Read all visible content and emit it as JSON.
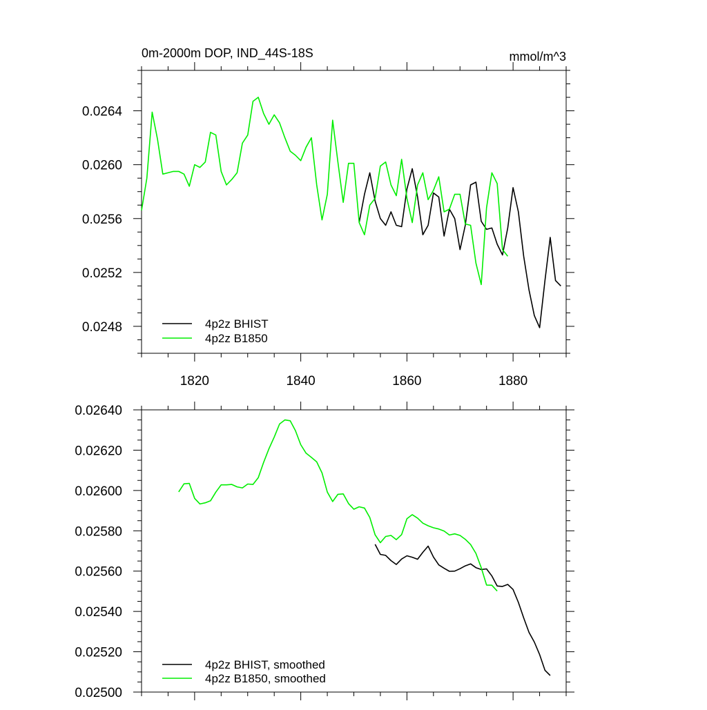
{
  "colors": {
    "bhist": "#000000",
    "b1850": "#00ee00",
    "axis": "#000000"
  },
  "chart_data": [
    {
      "type": "line",
      "title": "0m-2000m DOP, IND_44S-18S",
      "units": "mmol/m^3",
      "xlabel": "",
      "ylabel": "",
      "xlim": [
        1810,
        1890
      ],
      "ylim": [
        0.0246,
        0.0267
      ],
      "xticks": [
        1820,
        1840,
        1860,
        1880
      ],
      "xtick_labels": [
        "1820",
        "1840",
        "1860",
        "1880"
      ],
      "yticks": [
        0.0248,
        0.0252,
        0.0256,
        0.026,
        0.0264
      ],
      "ytick_labels": [
        "0.0248",
        "0.0252",
        "0.0256",
        "0.0260",
        "0.0264"
      ],
      "grid": false,
      "legend": "bottom-left",
      "series": [
        {
          "name": "4p2z BHIST",
          "x": [
            1851,
            1852,
            1853,
            1854,
            1855,
            1856,
            1857,
            1858,
            1859,
            1860,
            1861,
            1862,
            1863,
            1864,
            1865,
            1866,
            1867,
            1868,
            1869,
            1870,
            1871,
            1872,
            1873,
            1874,
            1875,
            1876,
            1877,
            1878,
            1879,
            1880,
            1881,
            1882,
            1883,
            1884,
            1885,
            1886,
            1887,
            1888,
            1889
          ],
          "y": [
            0.02557,
            0.02578,
            0.02594,
            0.02573,
            0.0256,
            0.02555,
            0.02565,
            0.02555,
            0.02554,
            0.02582,
            0.02597,
            0.02576,
            0.02548,
            0.02555,
            0.02579,
            0.02576,
            0.02547,
            0.02567,
            0.0256,
            0.02537,
            0.02555,
            0.02585,
            0.02587,
            0.02558,
            0.02552,
            0.02553,
            0.02541,
            0.02533,
            0.02553,
            0.02583,
            0.02565,
            0.02532,
            0.02507,
            0.02488,
            0.02479,
            0.02514,
            0.02546,
            0.02514,
            0.0251
          ]
        },
        {
          "name": "4p2z B1850",
          "x": [
            1810,
            1811,
            1812,
            1813,
            1814,
            1815,
            1816,
            1817,
            1818,
            1819,
            1820,
            1821,
            1822,
            1823,
            1824,
            1825,
            1826,
            1827,
            1828,
            1829,
            1830,
            1831,
            1832,
            1833,
            1834,
            1835,
            1836,
            1837,
            1838,
            1839,
            1840,
            1841,
            1842,
            1843,
            1844,
            1845,
            1846,
            1847,
            1848,
            1849,
            1850,
            1851,
            1852,
            1853,
            1854,
            1855,
            1856,
            1857,
            1858,
            1859,
            1860,
            1861,
            1862,
            1863,
            1864,
            1865,
            1866,
            1867,
            1868,
            1869,
            1870,
            1871,
            1872,
            1873,
            1874,
            1875,
            1876,
            1877,
            1878,
            1879
          ],
          "y": [
            0.02566,
            0.0259,
            0.02639,
            0.02619,
            0.02593,
            0.02594,
            0.02595,
            0.02595,
            0.02593,
            0.02584,
            0.026,
            0.02598,
            0.02602,
            0.02624,
            0.02622,
            0.02595,
            0.02585,
            0.02589,
            0.02594,
            0.02616,
            0.02622,
            0.02647,
            0.0265,
            0.02638,
            0.0263,
            0.02637,
            0.02631,
            0.0262,
            0.0261,
            0.02607,
            0.02603,
            0.02613,
            0.0262,
            0.02585,
            0.02559,
            0.02578,
            0.02633,
            0.02602,
            0.02572,
            0.02601,
            0.02601,
            0.02557,
            0.02548,
            0.0257,
            0.02575,
            0.02599,
            0.02602,
            0.02585,
            0.02577,
            0.02604,
            0.02575,
            0.02557,
            0.02585,
            0.02594,
            0.02574,
            0.02581,
            0.02591,
            0.02565,
            0.02567,
            0.02578,
            0.02578,
            0.02556,
            0.02555,
            0.02527,
            0.02511,
            0.02568,
            0.02594,
            0.02586,
            0.02537,
            0.02532
          ]
        }
      ]
    },
    {
      "type": "line",
      "title": "",
      "xlabel": "",
      "ylabel": "",
      "xlim": [
        1810,
        1890
      ],
      "ylim": [
        0.025,
        0.0264
      ],
      "xticks": [
        1820,
        1840,
        1860,
        1880
      ],
      "yticks": [
        0.025,
        0.0252,
        0.0254,
        0.0256,
        0.0258,
        0.026,
        0.0262,
        0.0264
      ],
      "ytick_labels": [
        "0.02500",
        "0.02520",
        "0.02540",
        "0.02560",
        "0.02580",
        "0.02600",
        "0.02620",
        "0.02640"
      ],
      "grid": false,
      "legend": "bottom-left",
      "series": [
        {
          "name": "4p2z BHIST, smoothed",
          "x": [
            1854,
            1855,
            1856,
            1857,
            1858,
            1859,
            1860,
            1861,
            1862,
            1863,
            1864,
            1865,
            1866,
            1867,
            1868,
            1869,
            1870,
            1871,
            1872,
            1873,
            1874,
            1875,
            1876,
            1877,
            1878,
            1879,
            1880,
            1881,
            1882,
            1883,
            1884,
            1885,
            1886,
            1887
          ],
          "y": [
            0.025733,
            0.025683,
            0.025678,
            0.025652,
            0.025633,
            0.02566,
            0.025676,
            0.025669,
            0.025659,
            0.025693,
            0.025724,
            0.02567,
            0.025631,
            0.025614,
            0.025599,
            0.0256,
            0.025612,
            0.025626,
            0.025636,
            0.025617,
            0.025608,
            0.025611,
            0.025576,
            0.025526,
            0.025524,
            0.025534,
            0.025509,
            0.025445,
            0.025368,
            0.025296,
            0.025248,
            0.025186,
            0.025108,
            0.025082
          ]
        },
        {
          "name": "4p2z B1850, smoothed",
          "x": [
            1817,
            1818,
            1819,
            1820,
            1821,
            1822,
            1823,
            1824,
            1825,
            1826,
            1827,
            1828,
            1829,
            1830,
            1831,
            1832,
            1833,
            1834,
            1835,
            1836,
            1837,
            1838,
            1839,
            1840,
            1841,
            1842,
            1843,
            1844,
            1845,
            1846,
            1847,
            1848,
            1849,
            1850,
            1851,
            1852,
            1853,
            1854,
            1855,
            1856,
            1857,
            1858,
            1859,
            1860,
            1861,
            1862,
            1863,
            1864,
            1865,
            1866,
            1867,
            1868,
            1869,
            1870,
            1871,
            1872,
            1873,
            1874,
            1875,
            1876,
            1877
          ],
          "y": [
            0.025993,
            0.026033,
            0.026035,
            0.025961,
            0.025933,
            0.025939,
            0.025949,
            0.025992,
            0.026028,
            0.026028,
            0.02603,
            0.026018,
            0.026013,
            0.026032,
            0.02603,
            0.026064,
            0.026139,
            0.026207,
            0.026265,
            0.02633,
            0.02635,
            0.026346,
            0.026297,
            0.026227,
            0.026185,
            0.026164,
            0.026142,
            0.026087,
            0.025992,
            0.025945,
            0.025981,
            0.025983,
            0.025935,
            0.025907,
            0.025919,
            0.025913,
            0.025866,
            0.02578,
            0.025741,
            0.025772,
            0.025777,
            0.025756,
            0.025781,
            0.02586,
            0.02588,
            0.025863,
            0.025838,
            0.025825,
            0.025815,
            0.025809,
            0.025799,
            0.025779,
            0.025785,
            0.025777,
            0.025758,
            0.025732,
            0.025688,
            0.025617,
            0.025531,
            0.02553,
            0.025501
          ]
        }
      ]
    }
  ]
}
